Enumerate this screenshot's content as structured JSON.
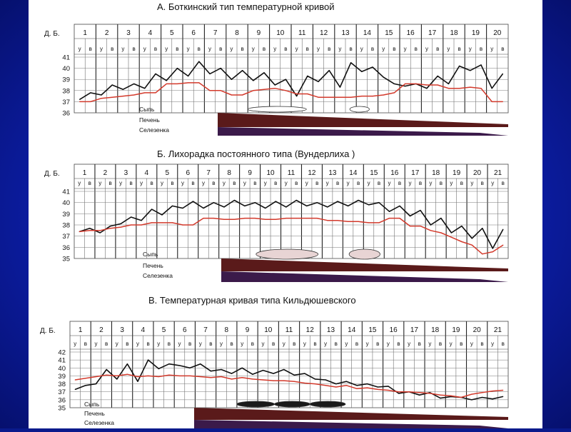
{
  "colors": {
    "background": "#0c1ea8",
    "paper": "#ffffff",
    "fever_line": "#111111",
    "red_line": "#d33a2c",
    "grid": "#444444",
    "organ_band": "#5a1a1a"
  },
  "row_labels": {
    "day_header": "Д. Б.",
    "rash": "Сыпь",
    "liver": "Печень",
    "spleen": "Селезенка"
  },
  "chart_data": [
    {
      "type": "line",
      "title": "А. Боткинский тип температурной кривой",
      "days": [
        "1",
        "2",
        "3",
        "4",
        "5",
        "6",
        "7",
        "8",
        "9",
        "10",
        "11",
        "12",
        "13",
        "14",
        "15",
        "16",
        "17",
        "18",
        "19",
        "20"
      ],
      "time_labels": [
        "у",
        "в",
        "у",
        "в",
        "у",
        "в",
        "у",
        "в",
        "у",
        "в",
        "у",
        "в",
        "у",
        "в",
        "у",
        "в",
        "у",
        "в",
        "у",
        "в",
        "у",
        "в",
        "у",
        "в",
        "у",
        "в",
        "у",
        "в",
        "у",
        "в",
        "у",
        "в",
        "у",
        "в",
        "у",
        "в",
        "у",
        "в",
        "у",
        "в"
      ],
      "ylim": [
        36,
        41
      ],
      "yticks": [
        "41",
        "40",
        "39",
        "38",
        "37",
        "36"
      ],
      "series": [
        {
          "role": "fever",
          "values": [
            37.2,
            37.8,
            37.6,
            38.5,
            38.1,
            38.6,
            38.2,
            39.5,
            38.9,
            40.0,
            39.3,
            40.6,
            39.5,
            40.0,
            39.0,
            39.8,
            38.9,
            39.6,
            38.5,
            39.0,
            37.5,
            39.3,
            38.8,
            39.8,
            38.3,
            40.5,
            39.7,
            40.1,
            39.2,
            38.6,
            38.4,
            38.6,
            38.2,
            39.3,
            38.6,
            40.2,
            39.8,
            40.3,
            38.2,
            39.5
          ]
        },
        {
          "role": "pulse",
          "values": [
            37.0,
            37.0,
            37.3,
            37.4,
            37.5,
            37.6,
            37.8,
            37.8,
            38.6,
            38.6,
            38.7,
            38.7,
            38.0,
            38.0,
            37.6,
            37.6,
            38.0,
            38.1,
            38.2,
            38.0,
            37.7,
            37.7,
            37.4,
            37.4,
            37.4,
            37.4,
            37.5,
            37.5,
            37.6,
            37.8,
            38.6,
            38.6,
            38.5,
            38.5,
            38.2,
            38.2,
            38.3,
            38.2,
            37.0,
            37.0
          ]
        }
      ],
      "rash": [
        [
          9,
          11.7
        ],
        [
          13.7,
          14.6
        ]
      ]
    },
    {
      "type": "line",
      "title": "Б. Лихорадка постоянного типа (Вундерлиха )",
      "days": [
        "1",
        "2",
        "3",
        "4",
        "5",
        "6",
        "7",
        "8",
        "9",
        "10",
        "11",
        "12",
        "13",
        "14",
        "15",
        "16",
        "17",
        "18",
        "19",
        "20",
        "21"
      ],
      "time_labels": [
        "у",
        "в",
        "у",
        "в",
        "у",
        "в",
        "у",
        "в",
        "у",
        "в",
        "у",
        "в",
        "у",
        "в",
        "у",
        "в",
        "у",
        "в",
        "у",
        "в",
        "у",
        "в",
        "у",
        "в",
        "у",
        "в",
        "у",
        "в",
        "у",
        "в",
        "у",
        "в",
        "у",
        "в",
        "у",
        "в",
        "у",
        "в",
        "у",
        "в",
        "у",
        "в"
      ],
      "ylim": [
        35,
        41
      ],
      "yticks": [
        "41",
        "40",
        "39",
        "38",
        "37",
        "36",
        "35"
      ],
      "series": [
        {
          "role": "fever",
          "values": [
            37.4,
            37.7,
            37.3,
            37.9,
            38.1,
            38.7,
            38.4,
            39.4,
            38.9,
            39.7,
            39.5,
            40.1,
            39.5,
            40.0,
            39.6,
            40.2,
            39.7,
            40.0,
            39.5,
            40.1,
            39.6,
            40.2,
            39.7,
            40.0,
            39.6,
            40.1,
            39.7,
            40.2,
            39.8,
            40.0,
            39.2,
            39.7,
            38.8,
            39.3,
            38.0,
            38.6,
            37.3,
            37.9,
            36.8,
            37.7,
            35.9,
            37.6
          ]
        },
        {
          "role": "pulse",
          "values": [
            37.4,
            37.5,
            37.5,
            37.7,
            37.8,
            38.0,
            38.0,
            38.2,
            38.2,
            38.2,
            38.0,
            38.0,
            38.6,
            38.6,
            38.5,
            38.5,
            38.6,
            38.6,
            38.5,
            38.5,
            38.6,
            38.6,
            38.6,
            38.6,
            38.4,
            38.4,
            38.3,
            38.3,
            38.2,
            38.2,
            38.6,
            38.6,
            37.9,
            37.9,
            37.5,
            37.3,
            36.9,
            36.5,
            36.2,
            35.4,
            35.6,
            36.2
          ]
        }
      ],
      "rash": [
        [
          9.8,
          12.8
        ],
        [
          14.3,
          15.8
        ]
      ]
    },
    {
      "type": "line",
      "title": "В. Температурная кривая типа Кильдюшевского",
      "days": [
        "1",
        "2",
        "3",
        "4",
        "5",
        "6",
        "7",
        "8",
        "9",
        "10",
        "11",
        "12",
        "13",
        "14",
        "15",
        "16",
        "17",
        "18",
        "19",
        "20",
        "21"
      ],
      "time_labels": [
        "у",
        "в",
        "у",
        "в",
        "у",
        "в",
        "у",
        "в",
        "у",
        "в",
        "у",
        "в",
        "у",
        "в",
        "у",
        "в",
        "у",
        "в",
        "у",
        "в",
        "у",
        "в",
        "у",
        "в",
        "у",
        "в",
        "у",
        "в",
        "у",
        "в",
        "у",
        "в",
        "у",
        "в",
        "у",
        "в",
        "у",
        "в",
        "у",
        "в",
        "у",
        "в"
      ],
      "ylim": [
        35,
        42
      ],
      "yticks": [
        "42",
        "41",
        "40",
        "39",
        "38",
        "37",
        "36",
        "35"
      ],
      "series": [
        {
          "role": "fever",
          "values": [
            37.3,
            37.8,
            38.0,
            39.8,
            38.6,
            40.5,
            38.3,
            41.0,
            39.9,
            40.5,
            40.3,
            40.0,
            40.5,
            39.6,
            39.8,
            39.3,
            40.0,
            39.2,
            39.7,
            39.3,
            39.8,
            39.1,
            39.3,
            38.6,
            38.5,
            38.0,
            38.3,
            37.8,
            38.0,
            37.6,
            37.7,
            36.8,
            37.0,
            36.6,
            36.9,
            36.2,
            36.4,
            36.3,
            36.0,
            36.3,
            36.1,
            36.4
          ]
        },
        {
          "role": "pulse",
          "values": [
            38.5,
            38.7,
            38.9,
            39.1,
            39.0,
            39.2,
            38.9,
            39.0,
            38.9,
            39.1,
            39.0,
            39.0,
            38.9,
            38.8,
            38.9,
            38.6,
            38.8,
            38.6,
            38.5,
            38.4,
            38.4,
            38.3,
            38.1,
            38.0,
            37.8,
            37.6,
            37.8,
            37.4,
            37.5,
            37.3,
            37.2,
            37.0,
            37.0,
            36.9,
            36.8,
            36.6,
            36.5,
            36.3,
            36.7,
            36.9,
            37.1,
            37.2
          ]
        }
      ],
      "rash": [
        [
          9.0,
          10.8
        ],
        [
          10.8,
          12.5
        ],
        [
          12.5,
          14.2
        ]
      ]
    }
  ]
}
